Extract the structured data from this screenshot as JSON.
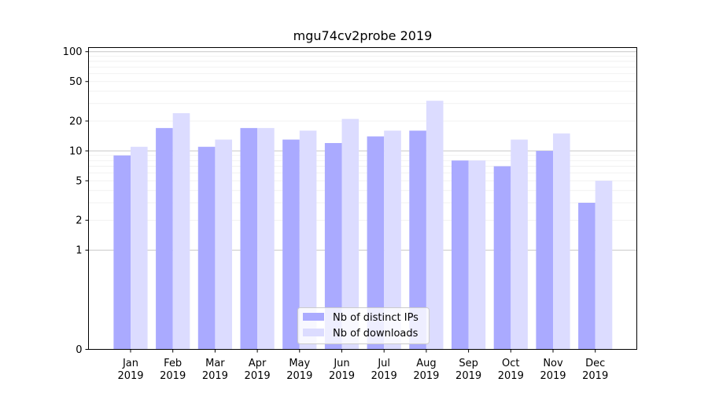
{
  "chart_data": {
    "type": "bar",
    "title": "mgu74cv2probe 2019",
    "xlabel": "",
    "ylabel": "",
    "yscale": "symlog",
    "ylim": [
      0,
      110
    ],
    "yticks": [
      0,
      1,
      2,
      5,
      10,
      20,
      50,
      100
    ],
    "categories": [
      [
        "Jan",
        "2019"
      ],
      [
        "Feb",
        "2019"
      ],
      [
        "Mar",
        "2019"
      ],
      [
        "Apr",
        "2019"
      ],
      [
        "May",
        "2019"
      ],
      [
        "Jun",
        "2019"
      ],
      [
        "Jul",
        "2019"
      ],
      [
        "Aug",
        "2019"
      ],
      [
        "Sep",
        "2019"
      ],
      [
        "Oct",
        "2019"
      ],
      [
        "Nov",
        "2019"
      ],
      [
        "Dec",
        "2019"
      ]
    ],
    "series": [
      {
        "name": "Nb of distinct IPs",
        "color": "#aaaaff",
        "values": [
          9,
          17,
          11,
          17,
          13,
          12,
          14,
          16,
          8,
          7,
          10,
          3
        ]
      },
      {
        "name": "Nb of downloads",
        "color": "#dcdcff",
        "values": [
          11,
          24,
          13,
          17,
          16,
          21,
          16,
          32,
          8,
          13,
          15,
          5
        ]
      }
    ],
    "legend": "bottom-center",
    "grid": true
  }
}
